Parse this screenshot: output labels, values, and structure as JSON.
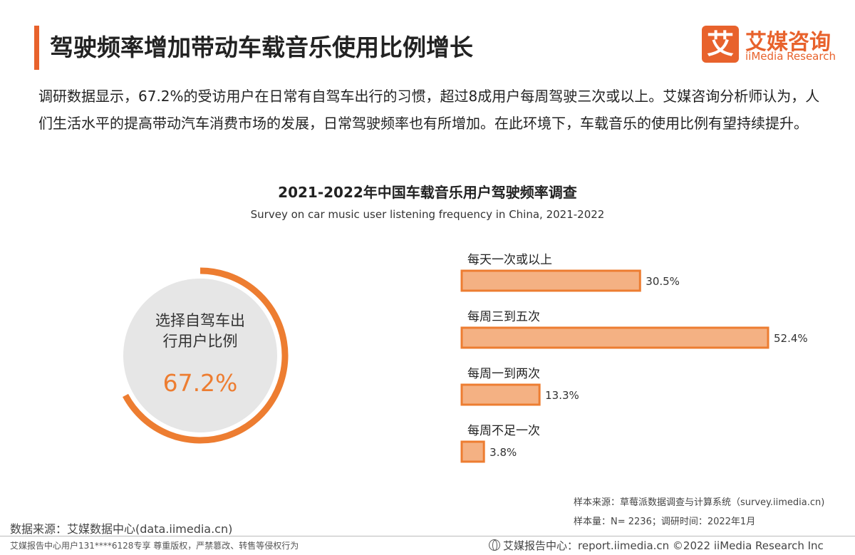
{
  "header": {
    "title": "驾驶频率增加带动车载音乐使用比例增长",
    "logo_glyph": "艾",
    "logo_cn": "艾媒咨询",
    "logo_en": "iiMedia Research",
    "accent": "#e8622c"
  },
  "intro": "调研数据显示，67.2%的受访用户在日常有自驾车出行的习惯，超过8成用户每周驾驶三次或以上。艾媒咨询分析师认为，人们生活水平的提高带动汽车消费市场的发展，日常驾驶频率也有所增加。在此环境下，车载音乐的使用比例有望持续提升。",
  "chart_data": [
    {
      "type": "pie",
      "label_line1": "选择自驾车出",
      "label_line2": "行用户比例",
      "value": 67.2,
      "value_label": "67.2%",
      "colors": {
        "arc": "#ed7d31",
        "fill": "#e6e6e6",
        "text": "#ed7d31"
      }
    },
    {
      "type": "bar",
      "orientation": "horizontal",
      "title": "2021-2022年中国车载音乐用户驾驶频率调查",
      "subtitle": "Survey on car music user listening frequency in China, 2021-2022",
      "categories": [
        "每天一次或以上",
        "每周三到五次",
        "每周一到两次",
        "每周不足一次"
      ],
      "values": [
        30.5,
        52.4,
        13.3,
        3.8
      ],
      "value_labels": [
        "30.5%",
        "52.4%",
        "13.3%",
        "3.8%"
      ],
      "colors": {
        "fill": "#f4b183",
        "stroke": "#ed7d31"
      }
    }
  ],
  "sources": {
    "sample_source": "样本来源：草莓派数据调查与计算系统（survey.iimedia.cn)",
    "sample_size": "样本量：N= 2236；调研时间：2022年1月",
    "data_source": "数据来源：艾媒数据中心(data.iimedia.cn)"
  },
  "footer": {
    "left": "艾媒报告中心用户131****6128专享 尊重版权，严禁篡改、转售等侵权行为",
    "right": "艾媒报告中心：report.iimedia.cn  ©2022  iiMedia Research  Inc"
  }
}
